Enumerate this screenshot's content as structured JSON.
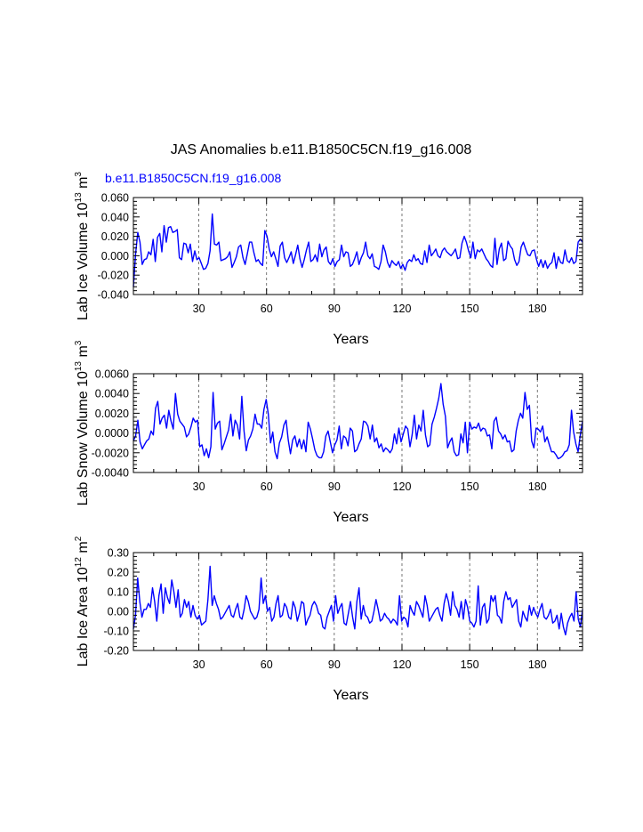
{
  "page": {
    "title": "JAS Anomalies b.e11.B1850C5CN.f19_g16.008",
    "case_label": "b.e11.B1850C5CN.f19_g16.008",
    "case_color": "#0000ff",
    "line_color": "#0000ff",
    "axis_color": "#000000",
    "grid_color": "#555555"
  },
  "chart_data": [
    {
      "type": "line",
      "name": "ice-volume",
      "ylabel": "Lab Ice Volume",
      "yunit_base": "10",
      "yunit_exp": "13",
      "yunit_tail": "m",
      "yunit_tail_exp": "3",
      "xlabel": "Years",
      "xlim": [
        1,
        200
      ],
      "ylim": [
        -0.04,
        0.06
      ],
      "yticks": [
        "-0.040",
        "-0.020",
        "0.000",
        "0.020",
        "0.040",
        "0.060"
      ],
      "ytick_values": [
        -0.04,
        -0.02,
        0.0,
        0.02,
        0.04,
        0.06
      ],
      "xticks": [
        30,
        60,
        90,
        120,
        150,
        180
      ],
      "xtick_labels": [
        "30",
        "60",
        "90",
        "120",
        "150",
        "180"
      ],
      "grid_x": [
        30,
        60,
        90,
        120,
        150,
        180
      ],
      "series": [
        {
          "name": "Lab Ice Volume",
          "values": [
            -0.032,
            0.002,
            0.024,
            0.014,
            -0.009,
            -0.004,
            -0.003,
            0.004,
            0.001,
            0.017,
            -0.006,
            0.019,
            0.023,
            0.004,
            0.031,
            0.014,
            0.029,
            0.03,
            0.024,
            0.025,
            0.027,
            -0.002,
            -0.004,
            0.013,
            0.012,
            0.003,
            0.012,
            -0.006,
            0.005,
            -0.004,
            -0.002,
            -0.008,
            -0.014,
            -0.013,
            -0.008,
            0.005,
            0.043,
            0.012,
            0.011,
            0.014,
            -0.005,
            -0.004,
            -0.003,
            -0.001,
            0.004,
            -0.012,
            -0.007,
            -0.001,
            0.009,
            0.011,
            -0.002,
            -0.009,
            0.002,
            0.014,
            0.014,
            0.003,
            -0.006,
            -0.004,
            -0.008,
            -0.01,
            0.026,
            0.02,
            0.007,
            -0.001,
            0.004,
            -0.003,
            -0.011,
            0.01,
            0.014,
            -0.002,
            -0.007,
            -0.002,
            0.004,
            -0.008,
            0.001,
            0.011,
            -0.003,
            -0.012,
            -0.004,
            0.006,
            0.014,
            -0.006,
            -0.004,
            0.001,
            -0.006,
            0.012,
            -0.001,
            0.006,
            0.009,
            -0.006,
            -0.009,
            -0.003,
            -0.011,
            -0.006,
            -0.004,
            0.011,
            -0.001,
            0.004,
            0.003,
            -0.011,
            -0.009,
            -0.003,
            0.004,
            -0.009,
            -0.002,
            0.003,
            0.014,
            0.0,
            -0.003,
            0.002,
            -0.011,
            -0.012,
            -0.014,
            -0.006,
            0.011,
            0.004,
            -0.007,
            -0.012,
            -0.005,
            -0.008,
            -0.01,
            -0.006,
            -0.013,
            -0.009,
            -0.015,
            -0.007,
            -0.004,
            -0.006,
            0.001,
            -0.005,
            -0.003,
            -0.008,
            -0.009,
            0.005,
            -0.007,
            0.011,
            0.0,
            0.003,
            0.007,
            0.0,
            -0.002,
            0.005,
            0.008,
            0.004,
            0.002,
            0.0,
            0.003,
            0.007,
            -0.003,
            -0.002,
            0.013,
            0.02,
            0.014,
            0.005,
            -0.002,
            0.014,
            -0.003,
            0.006,
            0.004,
            0.007,
            0.002,
            -0.003,
            -0.006,
            -0.01,
            -0.012,
            0.018,
            -0.009,
            0.007,
            0.013,
            -0.005,
            -0.003,
            0.015,
            0.01,
            0.007,
            -0.004,
            -0.01,
            -0.006,
            0.009,
            0.014,
            0.007,
            0.001,
            0.0,
            0.005,
            0.006,
            -0.004,
            -0.011,
            -0.004,
            -0.012,
            -0.005,
            -0.013,
            -0.009,
            -0.007,
            0.003,
            -0.013,
            -0.001,
            -0.007,
            -0.008,
            0.006,
            -0.005,
            -0.007,
            -0.002,
            -0.008,
            -0.006,
            0.014,
            0.017,
            0.014
          ]
        }
      ]
    },
    {
      "type": "line",
      "name": "snow-volume",
      "ylabel": "Lab Snow Volume",
      "yunit_base": "10",
      "yunit_exp": "13",
      "yunit_tail": "m",
      "yunit_tail_exp": "3",
      "xlabel": "Years",
      "xlim": [
        1,
        200
      ],
      "ylim": [
        -0.004,
        0.006
      ],
      "yticks": [
        "-0.0040",
        "-0.0020",
        "0.0000",
        "0.0020",
        "0.0040",
        "0.0060"
      ],
      "ytick_values": [
        -0.004,
        -0.002,
        0.0,
        0.002,
        0.004,
        0.006
      ],
      "xticks": [
        30,
        60,
        90,
        120,
        150,
        180
      ],
      "xtick_labels": [
        "30",
        "60",
        "90",
        "120",
        "150",
        "180"
      ],
      "grid_x": [
        30,
        60,
        90,
        120,
        150,
        180
      ],
      "series": [
        {
          "name": "Lab Snow Volume",
          "values": [
            -0.0008,
            -0.0003,
            0.0013,
            -0.0009,
            -0.0016,
            -0.0012,
            -0.0008,
            -0.0006,
            0.0002,
            -0.0002,
            0.0025,
            0.0032,
            0.0009,
            0.0015,
            0.0018,
            0.0005,
            0.0023,
            0.0012,
            0.0004,
            0.004,
            0.0019,
            0.0012,
            0.0009,
            0.0006,
            -0.0004,
            -0.0001,
            0.0006,
            0.0015,
            0.0011,
            0.0013,
            -0.0014,
            -0.0012,
            -0.0023,
            -0.0016,
            -0.0025,
            -0.0014,
            0.0041,
            0.0004,
            0.001,
            0.0012,
            -0.0017,
            -0.0011,
            -0.0004,
            0.0003,
            0.0019,
            -0.0003,
            0.0013,
            0.0008,
            -0.0006,
            0.0037,
            0.0002,
            -0.0018,
            -0.0007,
            -0.0003,
            0.0004,
            0.0019,
            0.0009,
            0.0009,
            0.0005,
            0.0024,
            0.0034,
            0.0019,
            -0.001,
            0.0001,
            -0.0019,
            -0.0026,
            -0.001,
            -0.0004,
            0.0008,
            0.0013,
            -0.0007,
            -0.0021,
            -0.0007,
            -0.0003,
            -0.0014,
            -0.0006,
            -0.0016,
            -0.0007,
            -0.0019,
            0.0011,
            0.0004,
            -0.0006,
            -0.0017,
            -0.0023,
            -0.0025,
            -0.0025,
            -0.0019,
            -0.0003,
            0.0002,
            -0.0009,
            -0.002,
            -0.0012,
            -0.0007,
            0.0007,
            -0.0016,
            -0.0003,
            -0.0005,
            -0.0013,
            0.0005,
            0.0002,
            -0.0019,
            -0.0017,
            -0.0011,
            -0.0006,
            0.0012,
            0.0011,
            0.0007,
            -0.0006,
            0.0008,
            -0.0009,
            -0.0005,
            -0.0015,
            -0.0011,
            -0.0019,
            -0.0015,
            -0.0017,
            -0.002,
            -0.0016,
            -0.0001,
            -0.0011,
            0.0005,
            -0.0009,
            -0.0001,
            0.0007,
            0.0004,
            -0.0014,
            -0.0002,
            0.0018,
            -0.0006,
            0.0008,
            0.0002,
            0.0023,
            -0.0002,
            -0.0014,
            -0.0012,
            0.0009,
            0.0016,
            0.0025,
            0.0035,
            0.005,
            0.0029,
            0.0017,
            -0.0015,
            -0.0009,
            -0.0005,
            -0.0019,
            -0.0023,
            -0.0022,
            -0.0001,
            -0.001,
            0.0011,
            -0.002,
            0.0011,
            0.0004,
            0.0006,
            0.0005,
            0.001,
            0.0002,
            0.0005,
            0.0004,
            -0.0003,
            -0.0002,
            -0.0016,
            0.0012,
            0.0016,
            0.0002,
            -0.0001,
            -0.0006,
            -0.0002,
            -0.0009,
            -0.0008,
            -0.0019,
            -0.0017,
            0.0002,
            0.0013,
            0.002,
            0.0015,
            0.0041,
            0.0024,
            0.0028,
            -0.0008,
            -0.0015,
            0.0005,
            0.0004,
            0.0001,
            0.0007,
            -0.0009,
            -0.0004,
            -0.0012,
            -0.0019,
            -0.0019,
            -0.0022,
            -0.0026,
            -0.0025,
            -0.0023,
            -0.0019,
            -0.0018,
            -0.0012,
            0.0023,
            0.0001,
            -0.0011,
            -0.0019,
            -0.0002,
            0.0012
          ]
        }
      ]
    },
    {
      "type": "line",
      "name": "ice-area",
      "ylabel": "Lab Ice Area",
      "yunit_base": "10",
      "yunit_exp": "12",
      "yunit_tail": "m",
      "yunit_tail_exp": "2",
      "xlabel": "Years",
      "xlim": [
        1,
        200
      ],
      "ylim": [
        -0.2,
        0.3
      ],
      "yticks": [
        "-0.20",
        "-0.10",
        "0.00",
        "0.10",
        "0.20",
        "0.30"
      ],
      "ytick_values": [
        -0.2,
        -0.1,
        0.0,
        0.1,
        0.2,
        0.3
      ],
      "xticks": [
        30,
        60,
        90,
        120,
        150,
        180
      ],
      "xtick_labels": [
        "30",
        "60",
        "90",
        "120",
        "150",
        "180"
      ],
      "grid_x": [
        30,
        60,
        90,
        120,
        150,
        180
      ],
      "series": [
        {
          "name": "Lab Ice Area",
          "values": [
            -0.09,
            -0.02,
            0.17,
            0.05,
            -0.03,
            0.01,
            0.01,
            0.04,
            0.02,
            0.12,
            0.05,
            -0.05,
            0.08,
            0.14,
            -0.01,
            0.12,
            0.07,
            0.04,
            0.16,
            0.1,
            0.02,
            0.11,
            -0.03,
            -0.01,
            0.06,
            0.02,
            0.05,
            -0.03,
            0.03,
            -0.02,
            -0.04,
            -0.02,
            -0.07,
            -0.06,
            -0.05,
            0.06,
            0.23,
            0.03,
            0.08,
            0.04,
            0.01,
            -0.04,
            -0.03,
            -0.01,
            0.01,
            0.03,
            -0.02,
            -0.03,
            0.01,
            0.04,
            -0.03,
            -0.04,
            0.01,
            0.08,
            0.05,
            0.0,
            -0.02,
            -0.04,
            -0.03,
            0.01,
            0.17,
            0.04,
            0.08,
            0.0,
            0.02,
            -0.05,
            -0.03,
            0.04,
            0.08,
            -0.03,
            -0.02,
            0.04,
            0.02,
            -0.03,
            -0.04,
            0.05,
            0.02,
            -0.05,
            -0.01,
            0.05,
            0.04,
            -0.07,
            -0.04,
            -0.02,
            0.03,
            0.05,
            0.03,
            -0.01,
            -0.02,
            -0.08,
            -0.09,
            -0.03,
            0.0,
            0.03,
            -0.05,
            0.08,
            -0.01,
            0.02,
            0.04,
            -0.06,
            -0.07,
            -0.01,
            0.05,
            -0.03,
            -0.09,
            0.05,
            0.12,
            -0.04,
            0.03,
            -0.02,
            -0.03,
            -0.06,
            -0.05,
            0.0,
            0.06,
            0.01,
            -0.05,
            -0.04,
            -0.01,
            -0.03,
            -0.04,
            -0.06,
            -0.04,
            -0.05,
            -0.07,
            0.08,
            -0.05,
            -0.03,
            -0.04,
            -0.08,
            0.03,
            0.0,
            -0.02,
            0.05,
            0.03,
            0.0,
            -0.03,
            0.08,
            0.03,
            -0.05,
            -0.03,
            -0.01,
            0.01,
            0.02,
            -0.02,
            -0.05,
            0.04,
            0.09,
            0.05,
            -0.02,
            0.1,
            0.03,
            0.01,
            -0.03,
            0.05,
            -0.04,
            0.06,
            0.02,
            -0.05,
            -0.06,
            -0.08,
            -0.05,
            0.13,
            -0.07,
            0.02,
            0.04,
            -0.06,
            -0.04,
            0.08,
            0.05,
            0.08,
            -0.02,
            -0.03,
            -0.06,
            0.05,
            0.1,
            0.06,
            0.07,
            0.02,
            0.04,
            0.06,
            -0.05,
            -0.08,
            0.0,
            -0.03,
            -0.05,
            0.03,
            -0.02,
            0.02,
            -0.01,
            -0.03,
            0.01,
            0.04,
            -0.03,
            -0.04,
            -0.02,
            0.01,
            -0.06,
            -0.05,
            -0.02,
            -0.09,
            -0.01,
            -0.08,
            -0.12,
            -0.06,
            -0.03,
            -0.01,
            -0.05,
            0.1,
            -0.04,
            -0.08,
            0.01
          ]
        }
      ]
    }
  ]
}
